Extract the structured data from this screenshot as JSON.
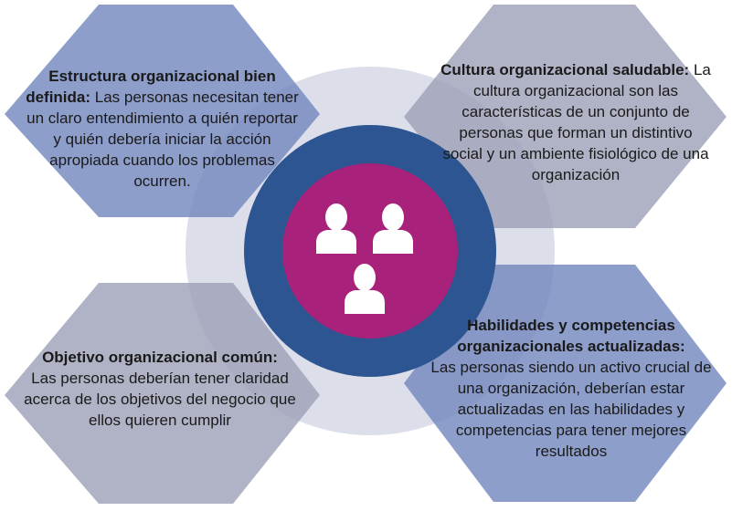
{
  "center": {
    "icon": "people-group-icon"
  },
  "colors": {
    "hex_blue": "#8093c3",
    "hex_gray": "#a9abbe",
    "outer_ring": "#d9dbe8",
    "inner_ring": "#2e5491",
    "core": "#a8217a",
    "icon": "#ffffff"
  },
  "boxes": {
    "top_left": {
      "heading": "Estructura organizacional bien definida:",
      "body": "Las personas necesitan tener un claro entendimiento a quién reportar y quién debería iniciar la acción apropiada cuando los problemas ocurren."
    },
    "top_right": {
      "heading": "Cultura organizacional saludable:",
      "body": "La cultura organizacional son las características de un conjunto de personas que forman un distintivo social y un ambiente fisiológico de una organización"
    },
    "bottom_left": {
      "heading": "Objetivo organizacional común:",
      "body": "Las personas deberían tener claridad acerca de los objetivos del negocio que ellos quieren cumplir"
    },
    "bottom_right": {
      "heading": "Habilidades y competencias organizacionales actualizadas:",
      "body": "Las personas siendo un activo crucial de una organización, deberían estar actualizadas en las habilidades y competencias para tener mejores resultados"
    }
  }
}
